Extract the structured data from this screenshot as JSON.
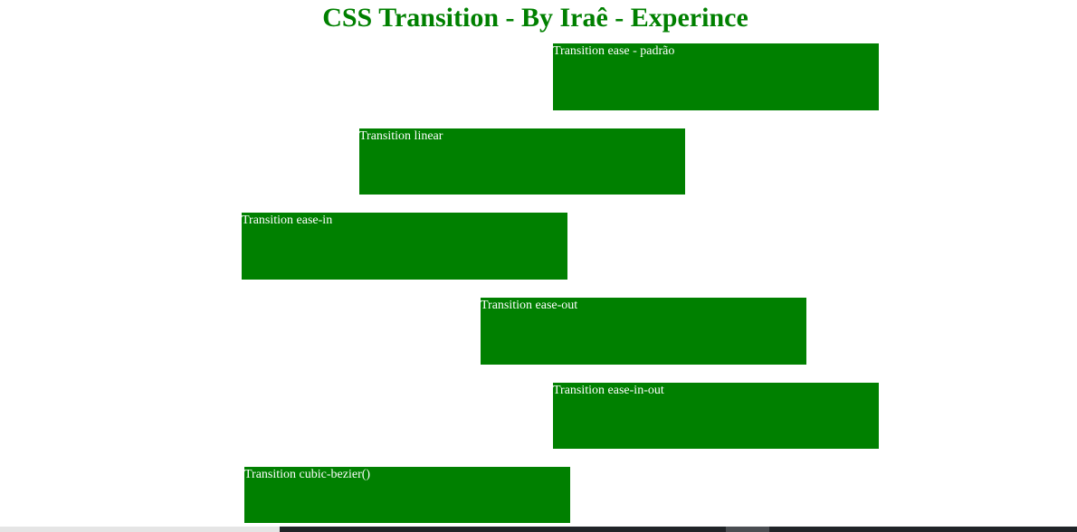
{
  "page": {
    "title": "CSS Transition - By Iraê - Experince"
  },
  "boxes": {
    "ease": "Transition ease - padrão",
    "linear": "Transition linear",
    "ease_in": "Transition ease-in",
    "ease_out": "Transition ease-out",
    "ease_in_out": "Transition ease-in-out",
    "cubic_bezier": "Transition cubic-bezier()"
  },
  "colors": {
    "title": "#008000",
    "box_background": "#008000",
    "box_text": "#ffffff"
  }
}
